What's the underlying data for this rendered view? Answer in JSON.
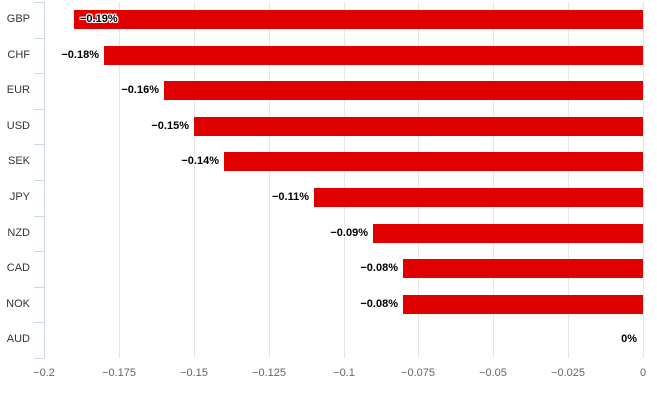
{
  "chart_data": {
    "type": "bar",
    "orientation": "horizontal",
    "title": "",
    "xlabel": "",
    "ylabel": "",
    "categories": [
      "GBP",
      "CHF",
      "EUR",
      "USD",
      "SEK",
      "JPY",
      "NZD",
      "CAD",
      "NOK",
      "AUD"
    ],
    "values": [
      -0.19,
      -0.18,
      -0.16,
      -0.15,
      -0.14,
      -0.11,
      -0.09,
      -0.08,
      -0.08,
      0
    ],
    "data_labels": [
      "−0.19%",
      "−0.18%",
      "−0.16%",
      "−0.15%",
      "−0.14%",
      "−0.11%",
      "−0.09%",
      "−0.08%",
      "−0.08%",
      "0%"
    ],
    "xlim": [
      -0.2,
      0
    ],
    "x_ticks": [
      -0.2,
      -0.175,
      -0.15,
      -0.125,
      -0.1,
      -0.075,
      -0.05,
      -0.025,
      0
    ],
    "x_tick_labels": [
      "−0.2",
      "−0.175",
      "−0.15",
      "−0.125",
      "−0.1",
      "−0.075",
      "−0.05",
      "−0.025",
      "0"
    ],
    "grid": true,
    "legend": false,
    "colors": {
      "bar": "#e00000",
      "gridline": "#e6e6e6",
      "axis_line": "#ccd6eb",
      "category_label": "#333333",
      "tick_label": "#666666",
      "data_label": "#000000",
      "background": "#ffffff"
    }
  }
}
